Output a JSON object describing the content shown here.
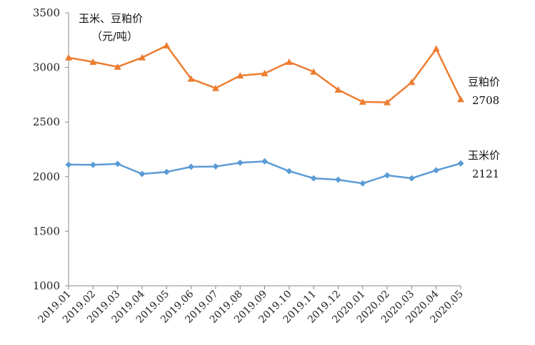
{
  "chart_data": {
    "type": "line",
    "title": "玉米、豆粕价",
    "unit": "（元/吨）",
    "xlabel": "",
    "ylabel": "",
    "ylim": [
      1000,
      3500
    ],
    "yticks": [
      "1000",
      "1500",
      "2000",
      "2500",
      "3000",
      "3500"
    ],
    "grid": false,
    "categories": [
      "2019.01",
      "2019.02",
      "2019.03",
      "2019.04",
      "2019.05",
      "2019.06",
      "2019.07",
      "2019.08",
      "2019.09",
      "2019.10",
      "2019.11",
      "2019.12",
      "2020.01",
      "2020.02",
      "2020.03",
      "2020.04",
      "2020.05"
    ],
    "series": [
      {
        "name": "豆粕价",
        "color": "#ED7D31",
        "marker": "triangle",
        "end_value_label": "2708",
        "values": [
          3090,
          3050,
          3005,
          3090,
          3200,
          2895,
          2810,
          2925,
          2945,
          3050,
          2960,
          2795,
          2685,
          2680,
          2865,
          3170,
          2708
        ]
      },
      {
        "name": "玉米价",
        "color": "#5B9BD5",
        "marker": "diamond",
        "end_value_label": "2121",
        "values": [
          2110,
          2108,
          2117,
          2025,
          2043,
          2090,
          2093,
          2127,
          2140,
          2050,
          1985,
          1972,
          1938,
          2012,
          1985,
          2058,
          2121
        ]
      }
    ]
  }
}
